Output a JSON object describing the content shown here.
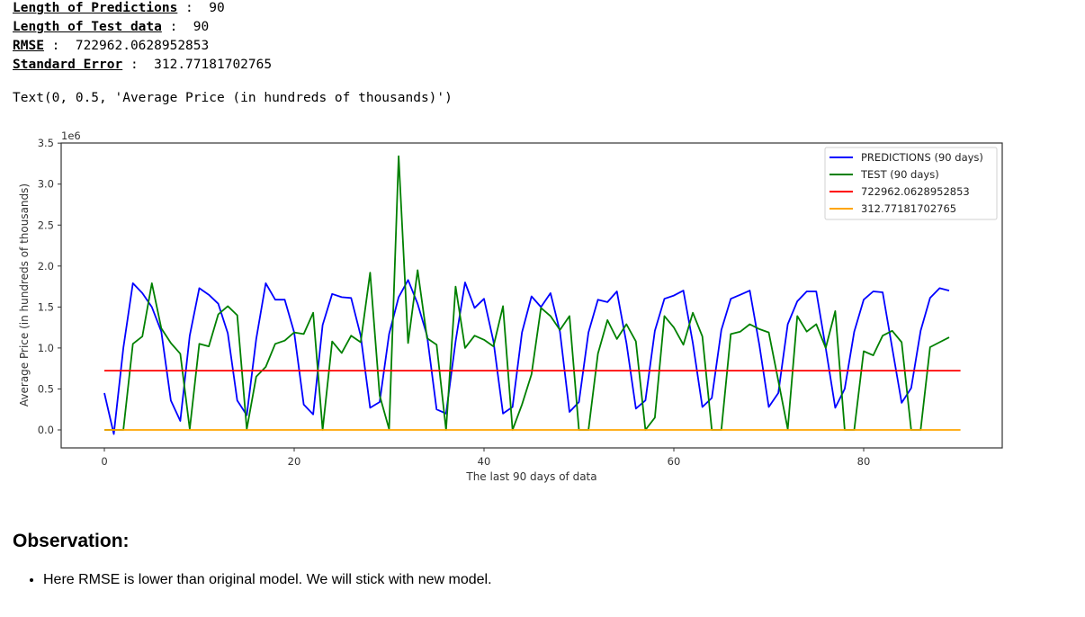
{
  "output": {
    "stats": [
      {
        "key": "Length of Predictions",
        "sep": " :  ",
        "value": "90"
      },
      {
        "key": "Length of Test data",
        "sep": " :  ",
        "value": "90"
      },
      {
        "key": "RMSE",
        "sep": " :  ",
        "value": "722962.0628952853"
      },
      {
        "key": "Standard Error",
        "sep": " :  ",
        "value": "312.77181702765"
      }
    ],
    "text_repr": "Text(0, 0.5, 'Average Price (in hundreds of thousands)')"
  },
  "observation": {
    "heading": "Observation:",
    "bullets": [
      "Here RMSE is lower than original model. We will stick with new model."
    ]
  },
  "chart_data": {
    "type": "line",
    "title": "",
    "xlabel": "The last 90 days of data",
    "ylabel": "Average Price (in hundreds of thousands)",
    "y_offset_label": "1e6",
    "xlim": [
      -4.6,
      94.6
    ],
    "ylim": [
      -0.21,
      3.5
    ],
    "xticks": [
      0,
      20,
      40,
      60,
      80
    ],
    "yticks": [
      0.0,
      0.5,
      1.0,
      1.5,
      2.0,
      2.5,
      3.0,
      3.5
    ],
    "ytick_labels": [
      "0.0",
      "0.5",
      "1.0",
      "1.5",
      "2.0",
      "2.5",
      "3.0",
      "3.5"
    ],
    "grid": false,
    "legend_position": "upper right",
    "series": [
      {
        "name": "PREDICTIONS (90 days)",
        "color": "#0000ff",
        "values": [
          0.45,
          -0.05,
          1.0,
          1.79,
          1.67,
          1.5,
          1.2,
          0.36,
          0.11,
          1.15,
          1.73,
          1.65,
          1.54,
          1.18,
          0.36,
          0.18,
          1.11,
          1.79,
          1.59,
          1.59,
          1.19,
          0.31,
          0.19,
          1.28,
          1.66,
          1.62,
          1.61,
          1.15,
          0.27,
          0.34,
          1.17,
          1.62,
          1.83,
          1.54,
          1.15,
          0.25,
          0.2,
          1.08,
          1.8,
          1.49,
          1.6,
          1.08,
          0.2,
          0.28,
          1.19,
          1.63,
          1.5,
          1.67,
          1.2,
          0.22,
          0.34,
          1.19,
          1.59,
          1.56,
          1.69,
          1.06,
          0.26,
          0.36,
          1.21,
          1.6,
          1.64,
          1.7,
          1.06,
          0.28,
          0.39,
          1.22,
          1.6,
          1.65,
          1.7,
          1.04,
          0.28,
          0.45,
          1.29,
          1.57,
          1.69,
          1.69,
          1.0,
          0.27,
          0.5,
          1.2,
          1.59,
          1.69,
          1.68,
          1.0,
          0.33,
          0.51,
          1.21,
          1.61,
          1.73,
          1.7
        ]
      },
      {
        "name": "TEST (90 days)",
        "color": "#008000",
        "values": [
          0.0,
          0.0,
          0.0,
          1.05,
          1.14,
          1.79,
          1.24,
          1.06,
          0.93,
          0.01,
          1.05,
          1.02,
          1.41,
          1.51,
          1.4,
          0.01,
          0.65,
          0.77,
          1.05,
          1.09,
          1.19,
          1.17,
          1.43,
          0.0,
          1.08,
          0.94,
          1.15,
          1.07,
          1.92,
          0.42,
          0.01,
          3.34,
          1.06,
          1.95,
          1.12,
          1.04,
          0.0,
          1.75,
          1.0,
          1.15,
          1.1,
          1.02,
          1.51,
          0.0,
          0.31,
          0.68,
          1.49,
          1.39,
          1.22,
          1.39,
          0.0,
          0.0,
          0.93,
          1.34,
          1.11,
          1.29,
          1.08,
          0.0,
          0.15,
          1.39,
          1.25,
          1.04,
          1.43,
          1.14,
          0.0,
          0.0,
          1.17,
          1.2,
          1.29,
          1.23,
          1.19,
          0.6,
          0.01,
          1.39,
          1.2,
          1.29,
          1.0,
          1.45,
          0.0,
          0.0,
          0.96,
          0.91,
          1.15,
          1.21,
          1.07,
          0.0,
          0.0,
          1.01,
          1.07,
          1.13
        ]
      },
      {
        "name": "722962.0628952853",
        "color": "#ff0000",
        "constant": 0.722962,
        "x_range": [
          0,
          90.2
        ]
      },
      {
        "name": "312.77181702765",
        "color": "#ffa500",
        "constant": 0.000313,
        "x_range": [
          0,
          90.2
        ]
      }
    ]
  }
}
